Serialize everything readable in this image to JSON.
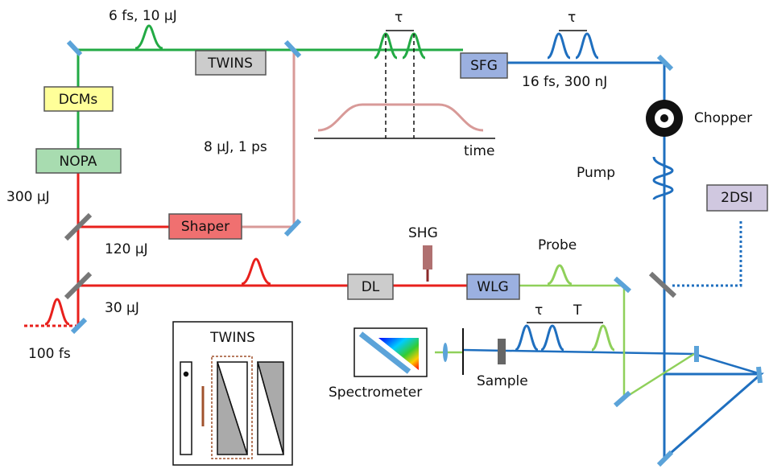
{
  "boxes": {
    "twins": "TWINS",
    "sfg": "SFG",
    "dcms": "DCMs",
    "nopa": "NOPA",
    "shaper": "Shaper",
    "dl": "DL",
    "wlg": "WLG",
    "twodsi": "2DSI"
  },
  "labels": {
    "green_pulse": "6 fs, 10 μJ",
    "tau_green": "τ",
    "tau_blue": "τ",
    "blue_pulse": "16 fs, 300 nJ",
    "chopper": "Chopper",
    "pink_pulse": "8 μJ, 1 ps",
    "time": "time",
    "pump": "Pump",
    "e300": "300 μJ",
    "e120": "120 μJ",
    "shg": "SHG",
    "probe": "Probe",
    "e30": "30 μJ",
    "tau_probe": "τ",
    "t_delay": "T",
    "fs100": "100 fs",
    "spectrometer": "Spectrometer",
    "sample": "Sample"
  },
  "inset": {
    "title": "TWINS"
  }
}
